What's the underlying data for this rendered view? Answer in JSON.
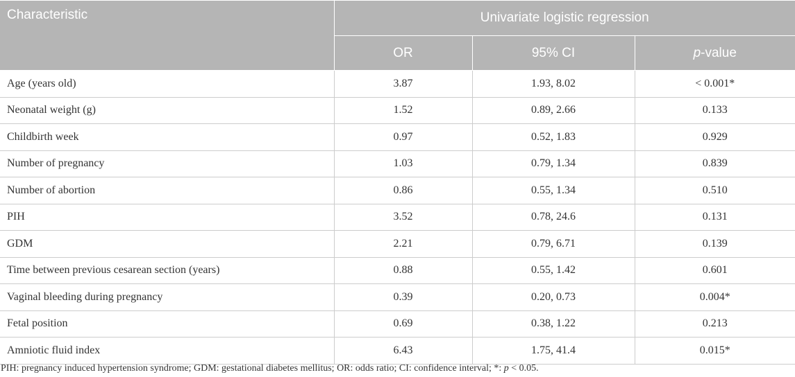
{
  "header": {
    "characteristic": "Characteristic",
    "group": "Univariate logistic regression",
    "or": "OR",
    "ci": "95% CI",
    "pvalue_italic": "p",
    "pvalue_rest": "-value"
  },
  "rows": [
    {
      "label": "Age (years old)",
      "or": "3.87",
      "ci": "1.93, 8.02",
      "p": "< 0.001*"
    },
    {
      "label": "Neonatal weight (g)",
      "or": "1.52",
      "ci": "0.89, 2.66",
      "p": "0.133"
    },
    {
      "label": "Childbirth week",
      "or": "0.97",
      "ci": "0.52, 1.83",
      "p": "0.929"
    },
    {
      "label": "Number of pregnancy",
      "or": "1.03",
      "ci": "0.79, 1.34",
      "p": "0.839"
    },
    {
      "label": "Number of abortion",
      "or": "0.86",
      "ci": "0.55, 1.34",
      "p": "0.510"
    },
    {
      "label": "PIH",
      "or": "3.52",
      "ci": "0.78, 24.6",
      "p": "0.131"
    },
    {
      "label": "GDM",
      "or": "2.21",
      "ci": "0.79, 6.71",
      "p": "0.139"
    },
    {
      "label": "Time between previous cesarean section (years)",
      "or": "0.88",
      "ci": "0.55, 1.42",
      "p": "0.601"
    },
    {
      "label": "Vaginal bleeding during pregnancy",
      "or": "0.39",
      "ci": "0.20, 0.73",
      "p": "0.004*"
    },
    {
      "label": "Fetal position",
      "or": "0.69",
      "ci": "0.38, 1.22",
      "p": "0.213"
    },
    {
      "label": "Amniotic fluid index",
      "or": "6.43",
      "ci": "1.75, 41.4",
      "p": "0.015*"
    }
  ],
  "footnote": {
    "text": "PIH: pregnancy induced hypertension syndrome; GDM: gestational diabetes mellitus; OR: odds ratio; CI: confidence interval; *: ",
    "italic": "p",
    "tail": " < 0.05."
  },
  "colors": {
    "header_bg": "#b5b5b5",
    "header_text": "#ffffff",
    "body_text": "#333333",
    "rule": "#cccccc"
  }
}
